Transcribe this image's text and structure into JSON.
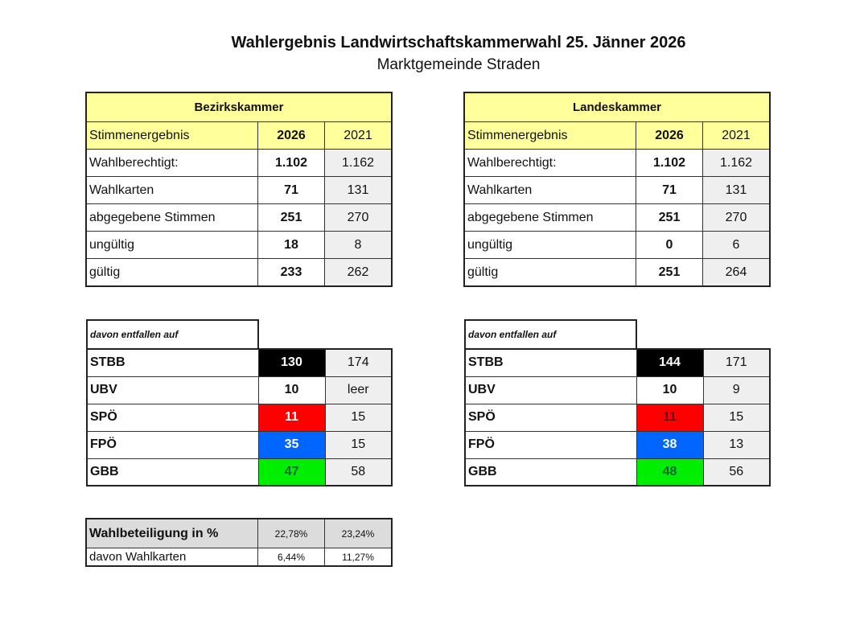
{
  "title": "Wahlergebnis Landwirtschaftskammerwahl 25. Jänner 2026",
  "subtitle": "Marktgemeinde Straden",
  "colors": {
    "header_yellow": "#ffff9c",
    "STBB": "#000000",
    "SPÖ": "#ff0000",
    "FPÖ": "#0066ff",
    "GBB": "#00ee00",
    "prev_year_bg": "#efefef"
  },
  "tables": [
    {
      "heading": "Bezirkskammer",
      "columns": [
        "Stimmenergebnis",
        "2026",
        "2021"
      ],
      "rows": [
        [
          "Wahlberechtigt:",
          "1.102",
          "1.162"
        ],
        [
          "Wahlkarten",
          "71",
          "131"
        ],
        [
          "abgegebene Stimmen",
          "251",
          "270"
        ],
        [
          "ungültig",
          "18",
          "8"
        ],
        [
          "gültig",
          "233",
          "262"
        ]
      ],
      "parties_label": "davon entfallen auf",
      "parties": [
        [
          "STBB",
          "130",
          "174"
        ],
        [
          "UBV",
          "10",
          "leer"
        ],
        [
          "SPÖ",
          "11",
          "15"
        ],
        [
          "FPÖ",
          "35",
          "15"
        ],
        [
          "GBB",
          "47",
          "58"
        ]
      ]
    },
    {
      "heading": "Landeskammer",
      "columns": [
        "Stimmenergebnis",
        "2026",
        "2021"
      ],
      "rows": [
        [
          "Wahlberechtigt:",
          "1.102",
          "1.162"
        ],
        [
          "Wahlkarten",
          "71",
          "131"
        ],
        [
          "abgegebene Stimmen",
          "251",
          "270"
        ],
        [
          "ungültig",
          "0",
          "6"
        ],
        [
          "gültig",
          "251",
          "264"
        ]
      ],
      "parties_label": "davon entfallen auf",
      "parties": [
        [
          "STBB",
          "144",
          "171"
        ],
        [
          "UBV",
          "10",
          "9"
        ],
        [
          "SPÖ",
          "11",
          "15"
        ],
        [
          "FPÖ",
          "38",
          "13"
        ],
        [
          "GBB",
          "48",
          "56"
        ]
      ]
    }
  ],
  "turnout": [
    [
      "Wahlbeteiligung in %",
      "22,78%",
      "23,24%"
    ],
    [
      "davon Wahlkarten",
      "6,44%",
      "11,27%"
    ]
  ]
}
